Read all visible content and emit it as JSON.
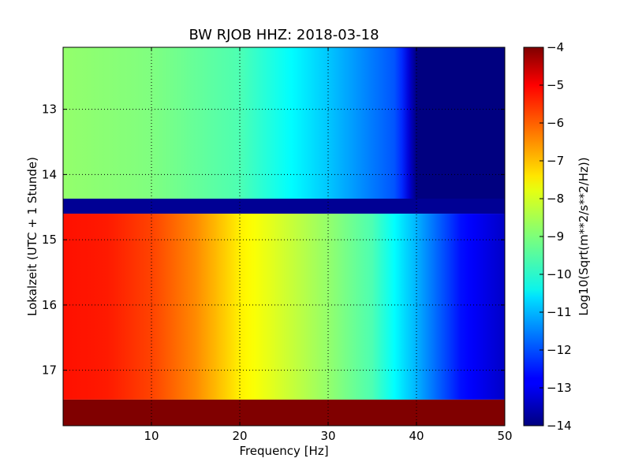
{
  "chart_data": {
    "type": "heatmap",
    "title": "BW RJOB HHZ: 2018-03-18",
    "xlabel": "Frequency [Hz]",
    "ylabel": "Lokalzeit (UTC + 1 Stunde)",
    "colorbar_label": "Log10(Sqrt(m**2/s**2/Hz))",
    "colormap": "jet",
    "xlim": [
      0,
      50
    ],
    "ylim": [
      17.85,
      12.05
    ],
    "x_ticks": [
      10,
      20,
      30,
      40,
      50
    ],
    "x_tick_labels": [
      "10",
      "20",
      "30",
      "40",
      "50"
    ],
    "y_ticks": [
      13,
      14,
      15,
      16,
      17
    ],
    "y_tick_labels": [
      "13",
      "14",
      "15",
      "16",
      "17"
    ],
    "clim": [
      -14,
      -4
    ],
    "colorbar_ticks": [
      -4,
      -5,
      -6,
      -7,
      -8,
      -9,
      -10,
      -11,
      -12,
      -13,
      -14
    ],
    "colorbar_tick_labels": [
      "−4",
      "−5",
      "−6",
      "−7",
      "−8",
      "−9",
      "−10",
      "−11",
      "−12",
      "−13",
      "−14"
    ],
    "grid": true,
    "segments": [
      {
        "time_range": [
          12.05,
          14.37
        ],
        "freq_points": [
          0,
          10,
          20,
          30,
          38,
          40,
          50
        ],
        "log_psd": [
          -8.8,
          -9.0,
          -9.5,
          -10.8,
          -12.0,
          -14.0,
          -14.0
        ]
      },
      {
        "time_range": [
          14.37,
          14.6
        ],
        "freq_points": [
          0,
          50
        ],
        "log_psd": [
          -13.8,
          -13.8
        ]
      },
      {
        "time_range": [
          14.6,
          17.45
        ],
        "freq_points": [
          0,
          5,
          10,
          15,
          20,
          25,
          30,
          35,
          40,
          45,
          50
        ],
        "log_psd": [
          -5.4,
          -5.5,
          -5.9,
          -6.6,
          -7.6,
          -8.2,
          -8.8,
          -9.5,
          -11.0,
          -12.6,
          -13.3
        ]
      },
      {
        "time_range": [
          17.45,
          17.85
        ],
        "freq_points": [
          0,
          50
        ],
        "log_psd": [
          -4.0,
          -4.0
        ]
      }
    ]
  }
}
